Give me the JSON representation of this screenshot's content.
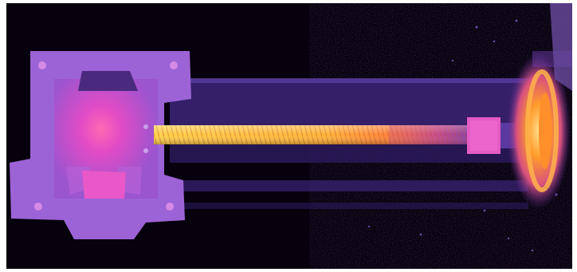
{
  "image": {
    "subject": "thermal-camera-view-of-linear-actuator",
    "palette": {
      "background": "#07010d",
      "cold": "#3f2380",
      "mid": "#8a52c8",
      "warm": "#d84bd0",
      "hot": "#ff8a28",
      "hottest": "#ffe05a"
    },
    "elements": [
      "motor-mount-plate",
      "lead-screw",
      "carriage-nut",
      "end-bearing-flange"
    ]
  }
}
